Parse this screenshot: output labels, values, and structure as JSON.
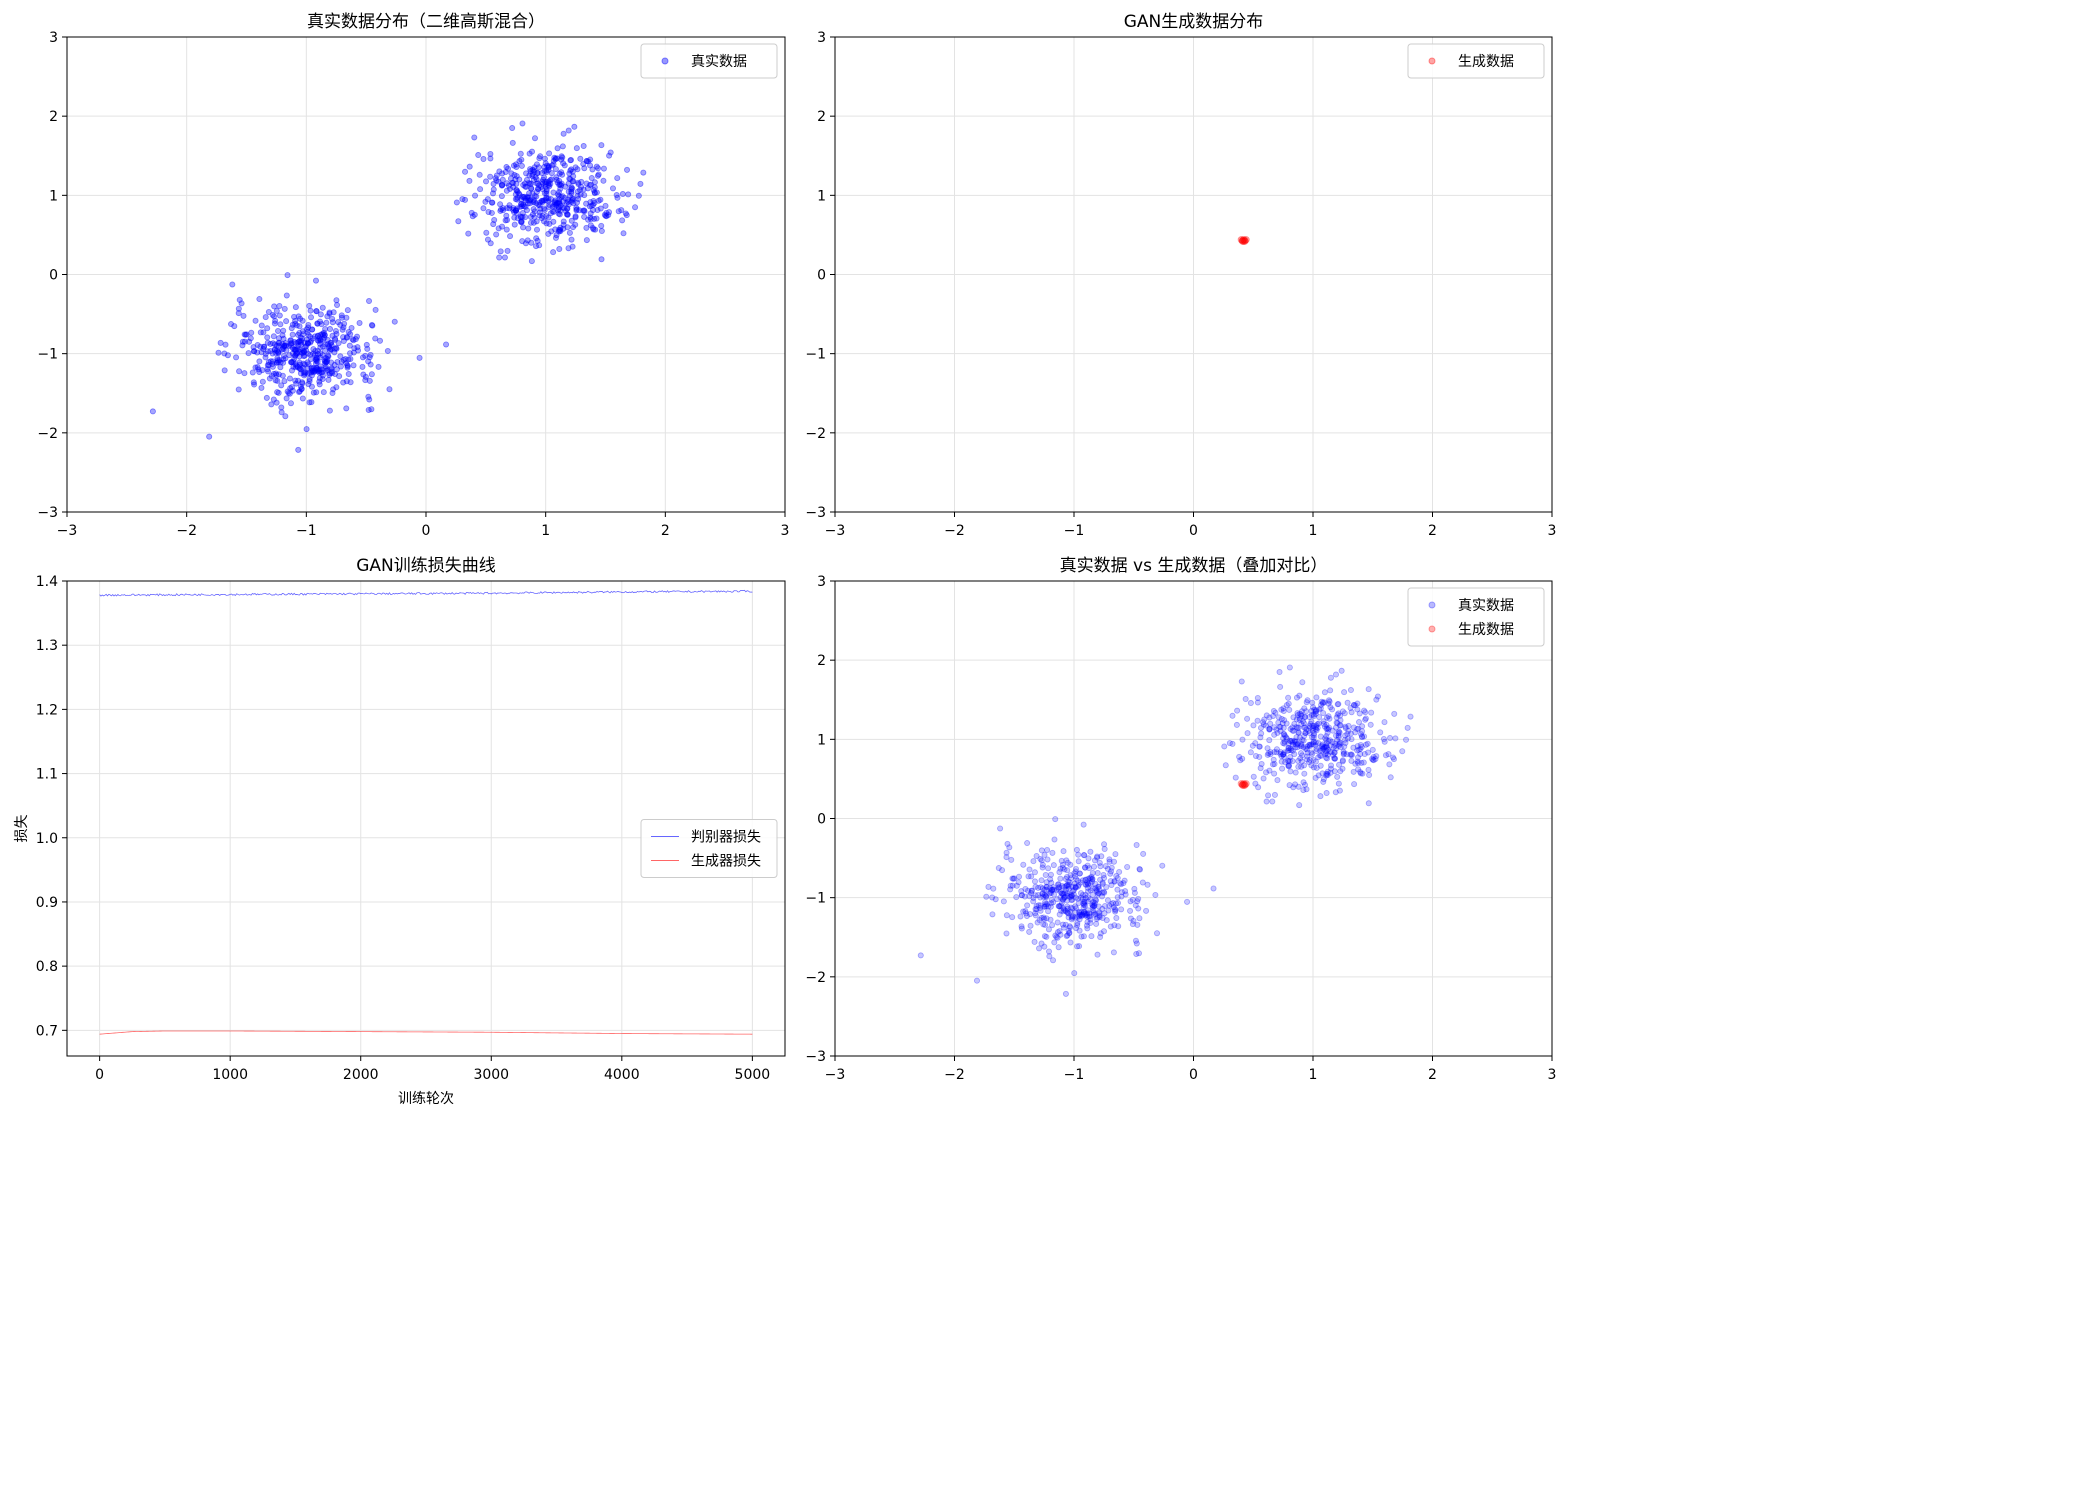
{
  "chart_data": [
    {
      "type": "scatter",
      "title": "真实数据分布（二维高斯混合）",
      "xlabel": "",
      "ylabel": "",
      "xlim": [
        -3,
        3
      ],
      "ylim": [
        -3,
        3
      ],
      "xticks": [
        "−3",
        "−2",
        "−1",
        "0",
        "1",
        "2",
        "3"
      ],
      "yticks": [
        "−3",
        "−2",
        "−1",
        "0",
        "1",
        "2",
        "3"
      ],
      "grid": true,
      "legend_position": "top-right",
      "series": [
        {
          "name": "真实数据",
          "color": "#0000ff",
          "alpha": 0.35,
          "clusters": [
            {
              "center": [
                -1,
                -1
              ],
              "std": 0.3,
              "n": 500
            },
            {
              "center": [
                1,
                1
              ],
              "std": 0.3,
              "n": 500
            }
          ]
        }
      ]
    },
    {
      "type": "scatter",
      "title": "GAN生成数据分布",
      "xlabel": "",
      "ylabel": "",
      "xlim": [
        -3,
        3
      ],
      "ylim": [
        -3,
        3
      ],
      "xticks": [
        "−3",
        "−2",
        "−1",
        "0",
        "1",
        "2",
        "3"
      ],
      "yticks": [
        "−3",
        "−2",
        "−1",
        "0",
        "1",
        "2",
        "3"
      ],
      "grid": true,
      "legend_position": "top-right",
      "series": [
        {
          "name": "生成数据",
          "color": "#ff0000",
          "alpha": 0.3,
          "points_approx": [
            [
              0.41,
              0.43
            ],
            [
              0.42,
              0.44
            ],
            [
              0.43,
              0.43
            ],
            [
              0.42,
              0.42
            ],
            [
              0.44,
              0.44
            ],
            [
              0.4,
              0.44
            ],
            [
              0.43,
              0.42
            ],
            [
              0.41,
              0.42
            ]
          ]
        }
      ]
    },
    {
      "type": "line",
      "title": "GAN训练损失曲线",
      "xlabel": "训练轮次",
      "ylabel": "损失",
      "xlim": [
        -250,
        5250
      ],
      "ylim": [
        0.66,
        1.4
      ],
      "xticks": [
        "0",
        "1000",
        "2000",
        "3000",
        "4000",
        "5000"
      ],
      "yticks": [
        "0.7",
        "0.8",
        "0.9",
        "1.0",
        "1.1",
        "1.2",
        "1.3",
        "1.4"
      ],
      "grid": true,
      "legend_position": "center-right",
      "series": [
        {
          "name": "判别器损失",
          "color": "#0000ff",
          "x": [
            0,
            1000,
            2000,
            3000,
            4000,
            5000
          ],
          "y": [
            1.378,
            1.379,
            1.38,
            1.381,
            1.383,
            1.384
          ]
        },
        {
          "name": "生成器损失",
          "color": "#ff0000",
          "x": [
            0,
            250,
            500,
            1000,
            2000,
            3000,
            4000,
            5000
          ],
          "y": [
            0.694,
            0.698,
            0.699,
            0.699,
            0.698,
            0.697,
            0.695,
            0.694
          ]
        }
      ]
    },
    {
      "type": "scatter",
      "title": "真实数据 vs 生成数据（叠加对比）",
      "xlabel": "",
      "ylabel": "",
      "xlim": [
        -3,
        3
      ],
      "ylim": [
        -3,
        3
      ],
      "xticks": [
        "−3",
        "−2",
        "−1",
        "0",
        "1",
        "2",
        "3"
      ],
      "yticks": [
        "−3",
        "−2",
        "−1",
        "0",
        "1",
        "2",
        "3"
      ],
      "grid": true,
      "legend_position": "top-right",
      "series": [
        {
          "name": "真实数据",
          "color": "#0000ff",
          "alpha": 0.22,
          "clusters": [
            {
              "center": [
                -1,
                -1
              ],
              "std": 0.3,
              "n": 500
            },
            {
              "center": [
                1,
                1
              ],
              "std": 0.3,
              "n": 500
            }
          ]
        },
        {
          "name": "生成数据",
          "color": "#ff0000",
          "alpha": 0.25,
          "points_approx": [
            [
              0.41,
              0.43
            ],
            [
              0.42,
              0.44
            ],
            [
              0.43,
              0.43
            ],
            [
              0.42,
              0.42
            ],
            [
              0.44,
              0.44
            ],
            [
              0.4,
              0.44
            ],
            [
              0.43,
              0.42
            ],
            [
              0.41,
              0.42
            ]
          ]
        }
      ]
    }
  ]
}
